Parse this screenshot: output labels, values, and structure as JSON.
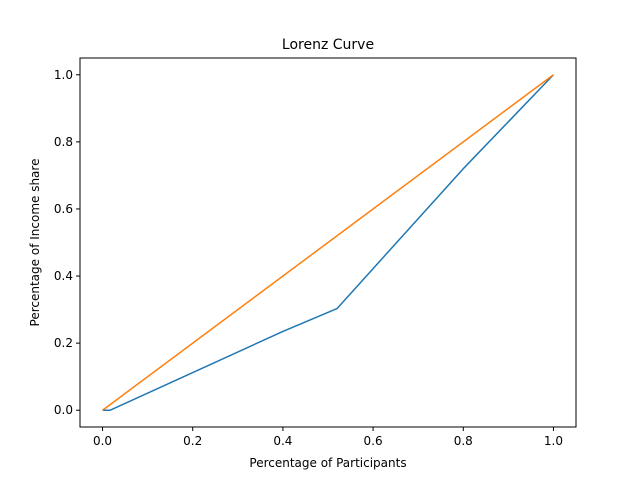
{
  "chart_data": {
    "type": "line",
    "title": "Lorenz Curve",
    "xlabel": "Percentage of Participants",
    "ylabel": "Percentage of Income share",
    "xlim": [
      -0.05,
      1.05
    ],
    "ylim": [
      -0.05,
      1.05
    ],
    "xticks": [
      "0.0",
      "0.2",
      "0.4",
      "0.6",
      "0.8",
      "1.0"
    ],
    "yticks": [
      "0.0",
      "0.2",
      "0.4",
      "0.6",
      "0.8",
      "1.0"
    ],
    "grid": false,
    "series": [
      {
        "color": "#1f77b4",
        "x": [
          0.0,
          0.017,
          0.4,
          0.52,
          0.8,
          1.0
        ],
        "y": [
          0.0,
          0.0,
          0.235,
          0.303,
          0.72,
          1.0
        ]
      },
      {
        "color": "#ff7f0e",
        "x": [
          0.0,
          1.0
        ],
        "y": [
          0.0,
          1.0
        ]
      }
    ]
  }
}
